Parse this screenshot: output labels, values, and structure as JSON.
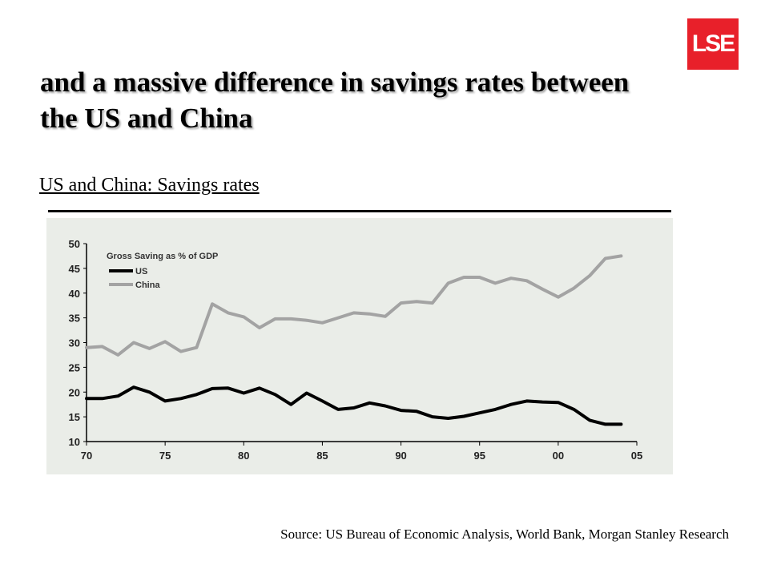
{
  "logo": {
    "text": "LSE",
    "color": "#e8202a"
  },
  "slide": {
    "title": "and a massive difference in savings rates between the US and China",
    "subtitle": "US and China: Savings rates",
    "source": "Source: US Bureau of Economic Analysis, World Bank, Morgan Stanley Research"
  },
  "chart_data": {
    "type": "line",
    "title": "Gross Saving as % of GDP",
    "xlabel": "",
    "ylabel": "",
    "ylim": [
      10,
      50
    ],
    "xlim": [
      1970,
      2005
    ],
    "yticks": [
      10,
      15,
      20,
      25,
      30,
      35,
      40,
      45,
      50
    ],
    "xticks": [
      1970,
      1975,
      1980,
      1985,
      1990,
      1995,
      2000,
      2005
    ],
    "xtick_labels": [
      "70",
      "75",
      "80",
      "85",
      "90",
      "95",
      "00",
      "05"
    ],
    "grid": false,
    "legend": "top-left",
    "x": [
      1970,
      1971,
      1972,
      1973,
      1974,
      1975,
      1976,
      1977,
      1978,
      1979,
      1980,
      1981,
      1982,
      1983,
      1984,
      1985,
      1986,
      1987,
      1988,
      1989,
      1990,
      1991,
      1992,
      1993,
      1994,
      1995,
      1996,
      1997,
      1998,
      1999,
      2000,
      2001,
      2002,
      2003,
      2004
    ],
    "series": [
      {
        "name": "US",
        "color": "#000000",
        "values": [
          18.7,
          18.7,
          19.2,
          21.0,
          20.0,
          18.2,
          18.7,
          19.5,
          20.7,
          20.8,
          19.8,
          20.8,
          19.5,
          17.5,
          19.8,
          18.2,
          16.5,
          16.8,
          17.8,
          17.2,
          16.3,
          16.1,
          15.0,
          14.7,
          15.1,
          15.8,
          16.5,
          17.5,
          18.2,
          18.0,
          17.9,
          16.5,
          14.3,
          13.5,
          13.5
        ]
      },
      {
        "name": "China",
        "color": "#a3a3a3",
        "values": [
          29.0,
          29.2,
          27.5,
          30.0,
          28.8,
          30.2,
          28.2,
          29.0,
          37.8,
          36.0,
          35.2,
          33.0,
          34.8,
          34.8,
          34.5,
          34.0,
          35.0,
          36.0,
          35.8,
          35.3,
          38.0,
          38.3,
          38.0,
          42.0,
          43.2,
          43.2,
          42.0,
          43.0,
          42.5,
          40.8,
          39.2,
          41.0,
          43.5,
          47.0,
          47.5
        ]
      }
    ]
  }
}
